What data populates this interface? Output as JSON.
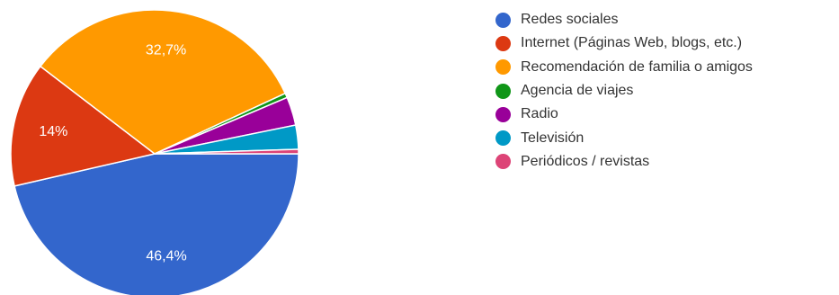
{
  "chart_data": {
    "type": "pie",
    "title": "",
    "legend_position": "right",
    "slices": [
      {
        "name": "Redes sociales",
        "value": 46.4,
        "label": "46,4%",
        "color": "#3366cc"
      },
      {
        "name": "Internet (Páginas Web, blogs, etc.)",
        "value": 14.0,
        "label": "14%",
        "color": "#dc3912"
      },
      {
        "name": "Recomendación de familia o amigos",
        "value": 32.7,
        "label": "32,7%",
        "color": "#ff9900"
      },
      {
        "name": "Agencia de viajes",
        "value": 0.5,
        "label": "",
        "color": "#109618"
      },
      {
        "name": "Radio",
        "value": 3.2,
        "label": "",
        "color": "#990099"
      },
      {
        "name": "Televisión",
        "value": 2.7,
        "label": "",
        "color": "#0099c6"
      },
      {
        "name": "Periódicos / revistas",
        "value": 0.5,
        "label": "",
        "color": "#dd4477"
      }
    ]
  }
}
